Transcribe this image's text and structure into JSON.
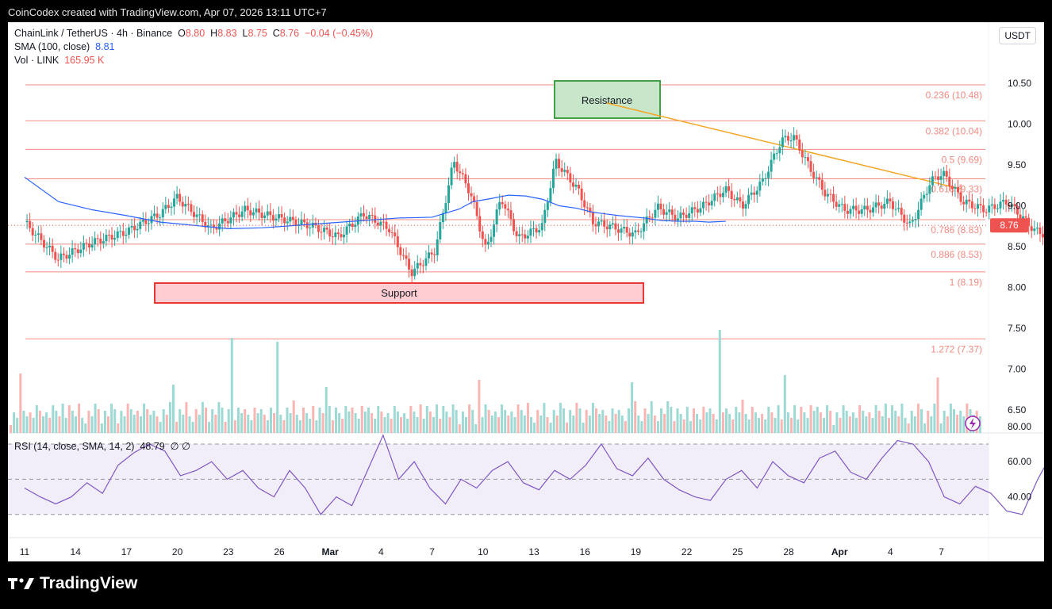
{
  "header": {
    "credit": "CoinCodex created with TradingView.com, Apr 07, 2026 13:11 UTC+7"
  },
  "legend": {
    "symbol": "ChainLink / TetherUS · 4h · Binance",
    "o_label": "O",
    "o_value": "8.80",
    "h_label": "H",
    "h_value": "8.83",
    "l_label": "L",
    "l_value": "8.75",
    "c_label": "C",
    "c_value": "8.76",
    "change": "−0.04 (−0.45%)",
    "sma_label": "SMA (100, close)",
    "sma_value": "8.81",
    "vol_label": "Vol · LINK",
    "vol_value": "165.95 K"
  },
  "currency_button": "USDT",
  "current_price": "8.76",
  "footer_brand": "TradingView",
  "rsi_legend": {
    "label": "RSI (14, close, SMA, 14, 2)",
    "value": "48.79",
    "extra": "∅ ∅"
  },
  "colors": {
    "up": "#26a69a",
    "down": "#ef5350",
    "sma": "#2962ff",
    "fib": "#f28b82",
    "trendline": "#f5a623",
    "rsi": "#7e57c2"
  },
  "chart_data": [
    {
      "type": "candlestick",
      "price_axis_ticks": [
        "10.50",
        "10.00",
        "9.50",
        "9.00",
        "8.50",
        "8.00",
        "7.50",
        "7.00",
        "6.50"
      ],
      "ylim": [
        6.25,
        11.1
      ],
      "x_ticks": [
        "11",
        "14",
        "17",
        "20",
        "23",
        "26",
        "Mar",
        "4",
        "7",
        "10",
        "13",
        "16",
        "19",
        "22",
        "25",
        "28",
        "Apr",
        "4",
        "7"
      ],
      "close_path": [
        [
          0,
          8.8
        ],
        [
          2,
          8.35
        ],
        [
          4,
          8.55
        ],
        [
          6,
          8.68
        ],
        [
          8,
          8.9
        ],
        [
          9,
          9.1
        ],
        [
          11,
          8.72
        ],
        [
          13,
          8.95
        ],
        [
          15,
          8.85
        ],
        [
          17,
          8.75
        ],
        [
          18.5,
          8.62
        ],
        [
          20,
          8.9
        ],
        [
          21.5,
          8.72
        ],
        [
          22.8,
          8.18
        ],
        [
          24.2,
          8.45
        ],
        [
          25.3,
          9.55
        ],
        [
          26.3,
          9.15
        ],
        [
          27.2,
          8.45
        ],
        [
          28.1,
          9.1
        ],
        [
          29.1,
          8.6
        ],
        [
          30.5,
          8.75
        ],
        [
          31.3,
          9.55
        ],
        [
          32.6,
          9.2
        ],
        [
          33.5,
          8.8
        ],
        [
          34.5,
          8.75
        ],
        [
          36,
          8.65
        ],
        [
          37.3,
          8.98
        ],
        [
          38.5,
          8.85
        ],
        [
          40,
          9.0
        ],
        [
          41.3,
          9.2
        ],
        [
          42.3,
          9.0
        ],
        [
          43.5,
          9.3
        ],
        [
          44.6,
          9.8
        ],
        [
          45.3,
          9.85
        ],
        [
          46.3,
          9.45
        ],
        [
          47.2,
          9.15
        ],
        [
          48.3,
          8.95
        ],
        [
          49.6,
          8.95
        ],
        [
          51,
          9.05
        ],
        [
          52.2,
          8.75
        ],
        [
          53.4,
          9.3
        ],
        [
          54.1,
          9.4
        ],
        [
          55.3,
          9.05
        ],
        [
          56.6,
          8.95
        ],
        [
          57.9,
          9.05
        ],
        [
          59.5,
          8.7
        ],
        [
          61,
          8.58
        ],
        [
          62.2,
          8.65
        ],
        [
          63.2,
          8.95
        ],
        [
          64.2,
          9.1
        ],
        [
          65.3,
          8.82
        ],
        [
          66.3,
          8.55
        ],
        [
          67.2,
          8.72
        ],
        [
          68.5,
          8.65
        ],
        [
          69.6,
          8.8
        ],
        [
          70.6,
          8.75
        ],
        [
          71.8,
          8.7
        ],
        [
          73.1,
          8.75
        ],
        [
          74.1,
          8.65
        ],
        [
          75.1,
          8.84
        ],
        [
          76.2,
          8.7
        ]
      ],
      "sma_100": [
        [
          0,
          9.35
        ],
        [
          2,
          9.05
        ],
        [
          4,
          8.95
        ],
        [
          6,
          8.88
        ],
        [
          8,
          8.8
        ],
        [
          10,
          8.76
        ],
        [
          12,
          8.72
        ],
        [
          14,
          8.73
        ],
        [
          16,
          8.76
        ],
        [
          18,
          8.79
        ],
        [
          20,
          8.82
        ],
        [
          22,
          8.85
        ],
        [
          24,
          8.86
        ],
        [
          25.6,
          8.96
        ],
        [
          26.4,
          9.05
        ],
        [
          27.5,
          9.09
        ],
        [
          28.5,
          9.13
        ],
        [
          29.5,
          9.12
        ],
        [
          30.5,
          9.08
        ],
        [
          31.5,
          9.0
        ],
        [
          32.5,
          8.97
        ],
        [
          33.5,
          8.92
        ],
        [
          35,
          8.88
        ],
        [
          36.5,
          8.85
        ],
        [
          37.5,
          8.82
        ],
        [
          38.5,
          8.81
        ],
        [
          39.5,
          8.81
        ],
        [
          40.3,
          8.8
        ],
        [
          41.3,
          8.81
        ]
      ],
      "volume_note": "volume histogram, values not readable"
    },
    {
      "type": "line",
      "name": "RSI",
      "y_ticks": [
        "80.00",
        "60.00",
        "40.00"
      ],
      "ylim": [
        22,
        82
      ],
      "bands": [
        30,
        50,
        70
      ],
      "values": [
        45,
        40,
        36,
        40,
        48,
        42,
        58,
        65,
        70,
        66,
        52,
        55,
        60,
        50,
        55,
        45,
        40,
        55,
        45,
        30,
        40,
        35,
        55,
        75,
        50,
        60,
        45,
        36,
        50,
        45,
        55,
        60,
        48,
        44,
        55,
        50,
        58,
        70,
        56,
        52,
        62,
        50,
        44,
        40,
        38,
        50,
        55,
        45,
        60,
        52,
        48,
        62,
        66,
        54,
        50,
        62,
        72,
        70,
        60,
        40,
        36,
        46,
        42,
        32,
        30,
        50,
        66,
        56,
        40,
        36,
        32,
        40,
        52,
        60,
        46,
        62,
        56,
        40,
        44,
        52,
        48,
        54,
        72,
        48
      ]
    }
  ],
  "fibonacci": [
    {
      "price": 10.48,
      "label": "0.236 (10.48)"
    },
    {
      "price": 10.04,
      "label": "0.382 (10.04)"
    },
    {
      "price": 9.69,
      "label": "0.5 (9.69)"
    },
    {
      "price": 9.33,
      "label": "0.618 (9.33)"
    },
    {
      "price": 8.83,
      "label": "0.786 (8.83)"
    },
    {
      "price": 8.53,
      "label": "0.886 (8.53)"
    },
    {
      "price": 8.19,
      "label": "1 (8.19)"
    },
    {
      "price": 7.37,
      "label": "1.272 (7.37)"
    }
  ],
  "annotations": {
    "resistance": "Resistance",
    "support": "Support"
  }
}
